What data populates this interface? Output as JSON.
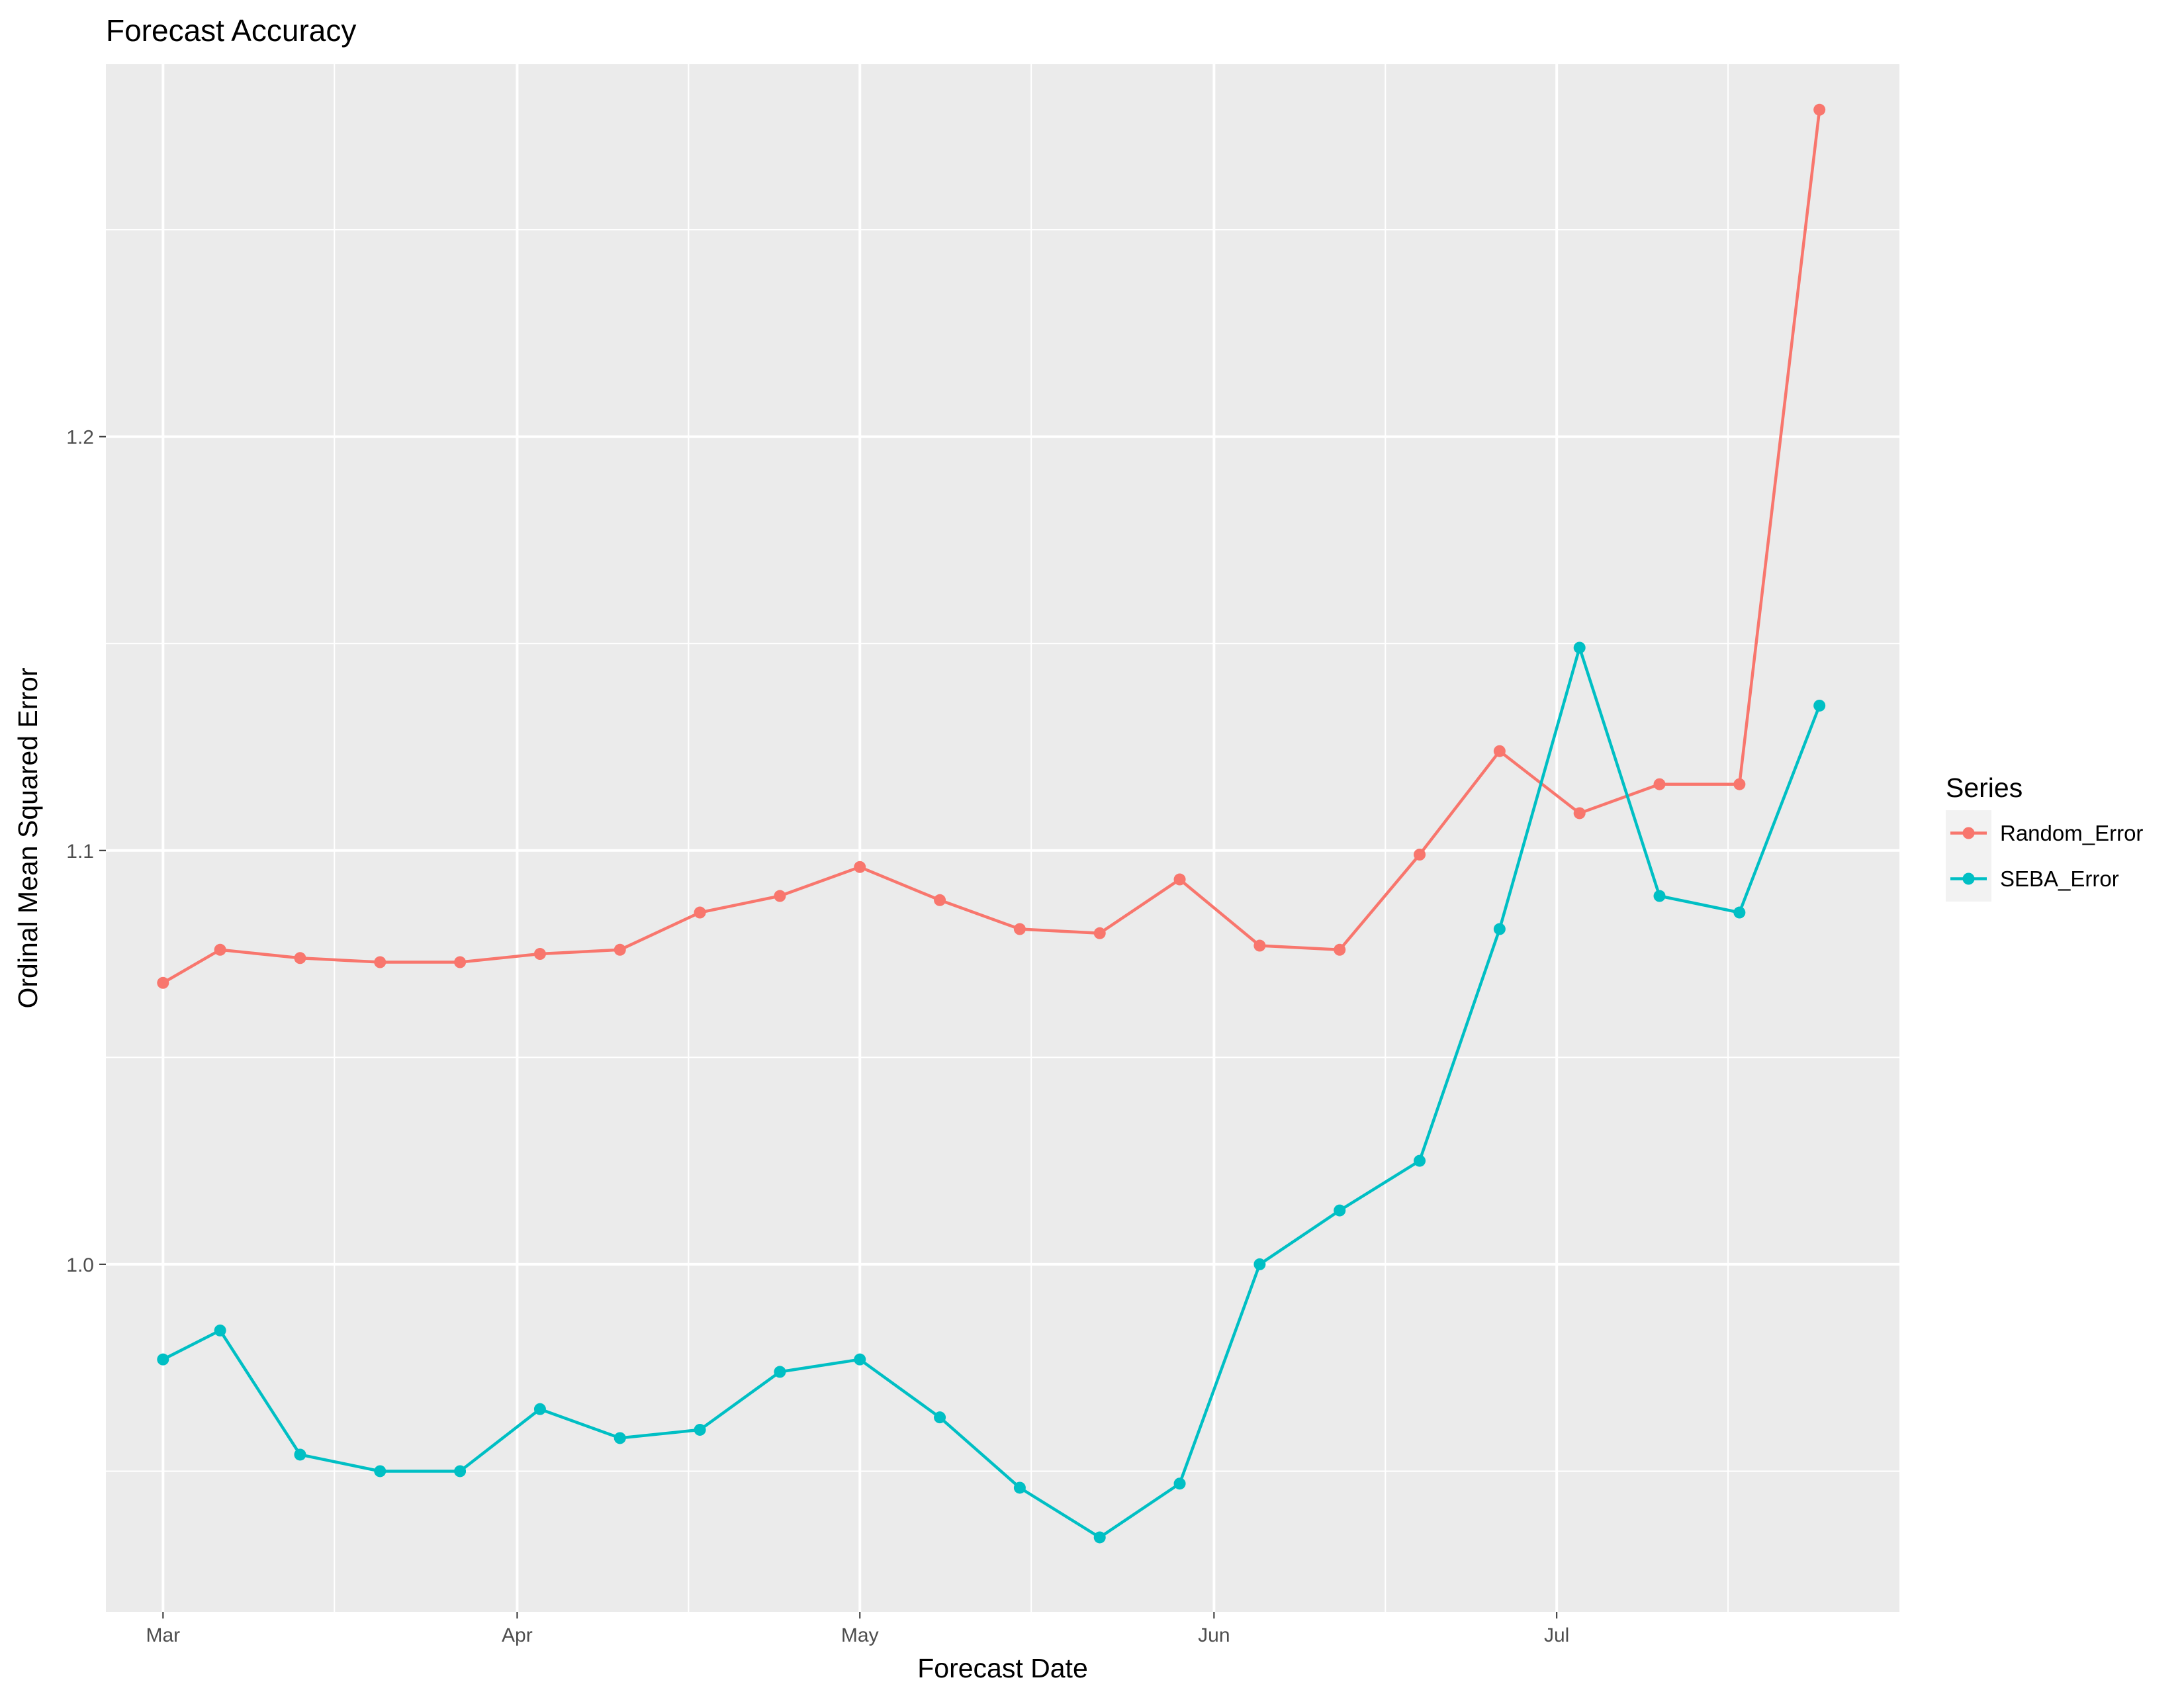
{
  "chart_data": {
    "type": "line",
    "title": "Forecast Accuracy",
    "xlabel": "Forecast Date",
    "ylabel": "Ordinal Mean Squared Error",
    "x_tick_labels": [
      "Mar",
      "Apr",
      "May",
      "Jun",
      "Jul"
    ],
    "x_tick_dates": [
      "2017-03-01",
      "2017-04-01",
      "2017-05-01",
      "2017-06-01",
      "2017-07-01"
    ],
    "xlim": [
      "2016-02-24",
      "2017-07-31"
    ],
    "y_ticks": [
      "1.0",
      "1.1",
      "1.2"
    ],
    "ylim": [
      0.916,
      1.29
    ],
    "grid": true,
    "legend_title": "Series",
    "legend_position": "right",
    "x": [
      "2017-03-01",
      "2017-03-06",
      "2017-03-13",
      "2017-03-20",
      "2017-03-27",
      "2017-04-03",
      "2017-04-10",
      "2017-04-17",
      "2017-04-24",
      "2017-05-01",
      "2017-05-08",
      "2017-05-15",
      "2017-05-22",
      "2017-05-29",
      "2017-06-05",
      "2017-06-12",
      "2017-06-19",
      "2017-06-26",
      "2017-07-03",
      "2017-07-10",
      "2017-07-17",
      "2017-07-24"
    ],
    "series": [
      {
        "name": "Random_Error",
        "color": "#F8766D",
        "values": [
          1.068,
          1.076,
          1.074,
          1.073,
          1.073,
          1.075,
          1.076,
          1.085,
          1.089,
          1.096,
          1.088,
          1.081,
          1.08,
          1.093,
          1.077,
          1.076,
          1.099,
          1.124,
          1.109,
          1.116,
          1.116,
          1.279
        ]
      },
      {
        "name": "SEBA_Error",
        "color": "#00BFC4",
        "values": [
          0.977,
          0.984,
          0.954,
          0.95,
          0.95,
          0.965,
          0.958,
          0.96,
          0.974,
          0.977,
          0.963,
          0.946,
          0.934,
          0.947,
          1.0,
          1.013,
          1.025,
          1.081,
          1.149,
          1.089,
          1.085,
          1.135
        ]
      }
    ],
    "colors": {
      "panel_background": "#EBEBEB",
      "grid_line": "#FFFFFF",
      "tick_text": "#4D4D4D"
    }
  }
}
